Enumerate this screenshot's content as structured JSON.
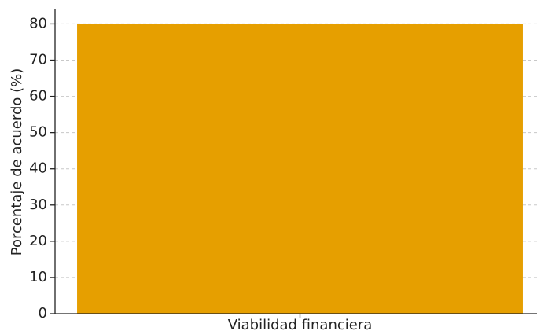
{
  "chart_data": {
    "type": "bar",
    "ylabel": "Porcentaje de acuerdo (%)",
    "categories": [
      "Viabilidad financiera"
    ],
    "values": [
      80
    ],
    "color": "#e69f00",
    "ylim": [
      0,
      84
    ],
    "yticks": [
      0,
      10,
      20,
      30,
      40,
      50,
      60,
      70,
      80
    ],
    "grid": true
  }
}
